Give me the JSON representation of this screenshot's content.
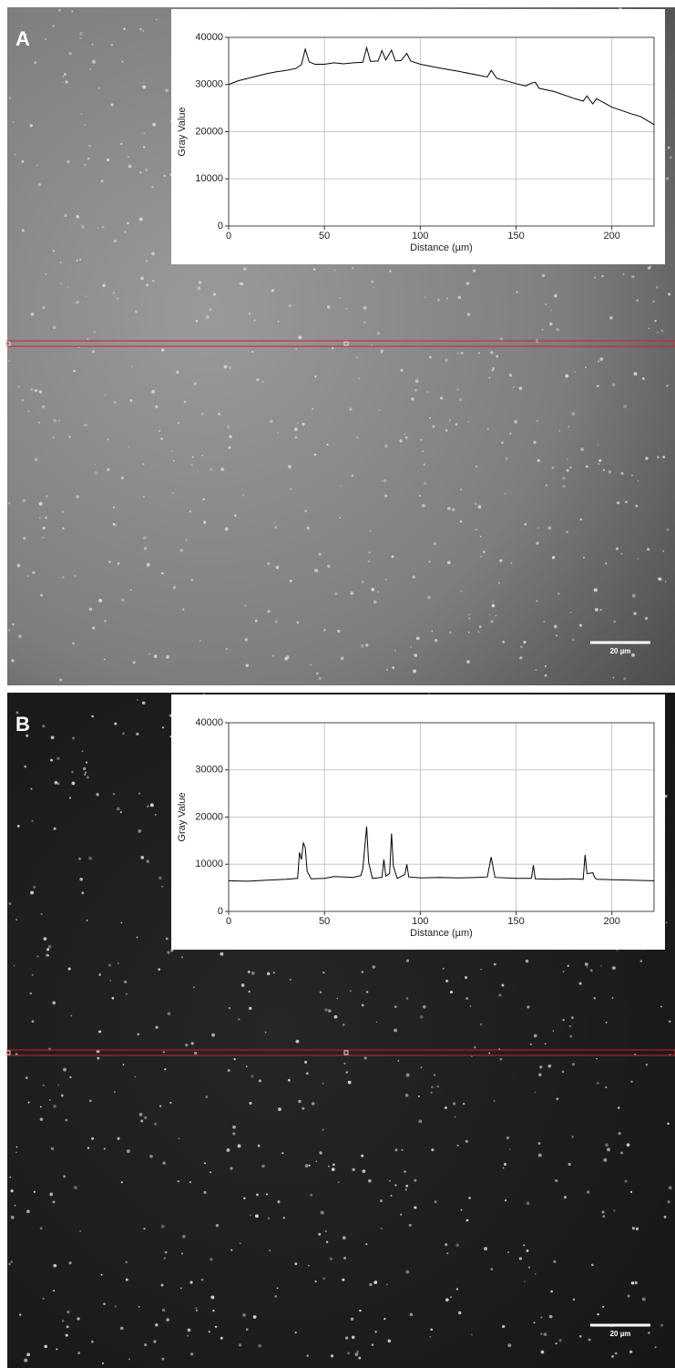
{
  "panels": [
    {
      "label": "A",
      "scale_bar": "20 µm"
    },
    {
      "label": "B",
      "scale_bar": "20 µm"
    }
  ],
  "chart_data": [
    {
      "type": "line",
      "x_label": "Distance (µm)",
      "y_label": "Gray Value",
      "color": "#000000",
      "xlim": [
        0,
        222
      ],
      "ylim": [
        0,
        40000
      ],
      "xticks": [
        0,
        50,
        100,
        150,
        200
      ],
      "yticks": [
        0,
        10000,
        20000,
        30000,
        40000
      ],
      "grid": true,
      "x": [
        0,
        5,
        10,
        15,
        20,
        25,
        30,
        35,
        38,
        40,
        42,
        45,
        50,
        55,
        60,
        65,
        70,
        72,
        74,
        78,
        80,
        82,
        85,
        87,
        90,
        93,
        95,
        100,
        110,
        120,
        130,
        135,
        137,
        140,
        150,
        155,
        158,
        160,
        162,
        170,
        180,
        185,
        187,
        190,
        192,
        200,
        210,
        215,
        222
      ],
      "values": [
        30000,
        30800,
        31300,
        31800,
        32300,
        32700,
        33000,
        33400,
        34200,
        37500,
        34800,
        34300,
        34300,
        34600,
        34400,
        34600,
        34700,
        37800,
        34900,
        35000,
        37200,
        35200,
        37300,
        35000,
        35100,
        36600,
        35000,
        34300,
        33500,
        32800,
        32000,
        31600,
        33000,
        31300,
        30200,
        29700,
        30300,
        30500,
        29200,
        28500,
        27100,
        26500,
        27600,
        25900,
        27000,
        25200,
        23800,
        23200,
        21500
      ]
    },
    {
      "type": "line",
      "x_label": "Distance (µm)",
      "y_label": "Gray Value",
      "color": "#000000",
      "xlim": [
        0,
        222
      ],
      "ylim": [
        0,
        40000
      ],
      "xticks": [
        0,
        50,
        100,
        150,
        200
      ],
      "yticks": [
        0,
        10000,
        20000,
        30000,
        40000
      ],
      "grid": true,
      "x": [
        0,
        10,
        20,
        30,
        36,
        37,
        38,
        39,
        40,
        41,
        43,
        50,
        55,
        60,
        65,
        69,
        70,
        72,
        73,
        75,
        80,
        81,
        82,
        84,
        85,
        86,
        88,
        92,
        93,
        94,
        100,
        110,
        120,
        130,
        135,
        137,
        139,
        150,
        158,
        159,
        160,
        170,
        180,
        185,
        186,
        187,
        190,
        191,
        192,
        200,
        210,
        222
      ],
      "values": [
        6500,
        6400,
        6600,
        6800,
        7000,
        12500,
        11000,
        14500,
        13500,
        8500,
        6900,
        7000,
        7400,
        7300,
        7200,
        7600,
        9000,
        18000,
        10500,
        7000,
        7200,
        11000,
        7500,
        8000,
        16500,
        9500,
        7000,
        7800,
        10000,
        7300,
        7100,
        7200,
        7100,
        7200,
        7300,
        11500,
        7200,
        7000,
        7000,
        9800,
        6900,
        6800,
        6900,
        6800,
        12000,
        8000,
        8200,
        7200,
        6800,
        6700,
        6600,
        6500
      ]
    }
  ]
}
